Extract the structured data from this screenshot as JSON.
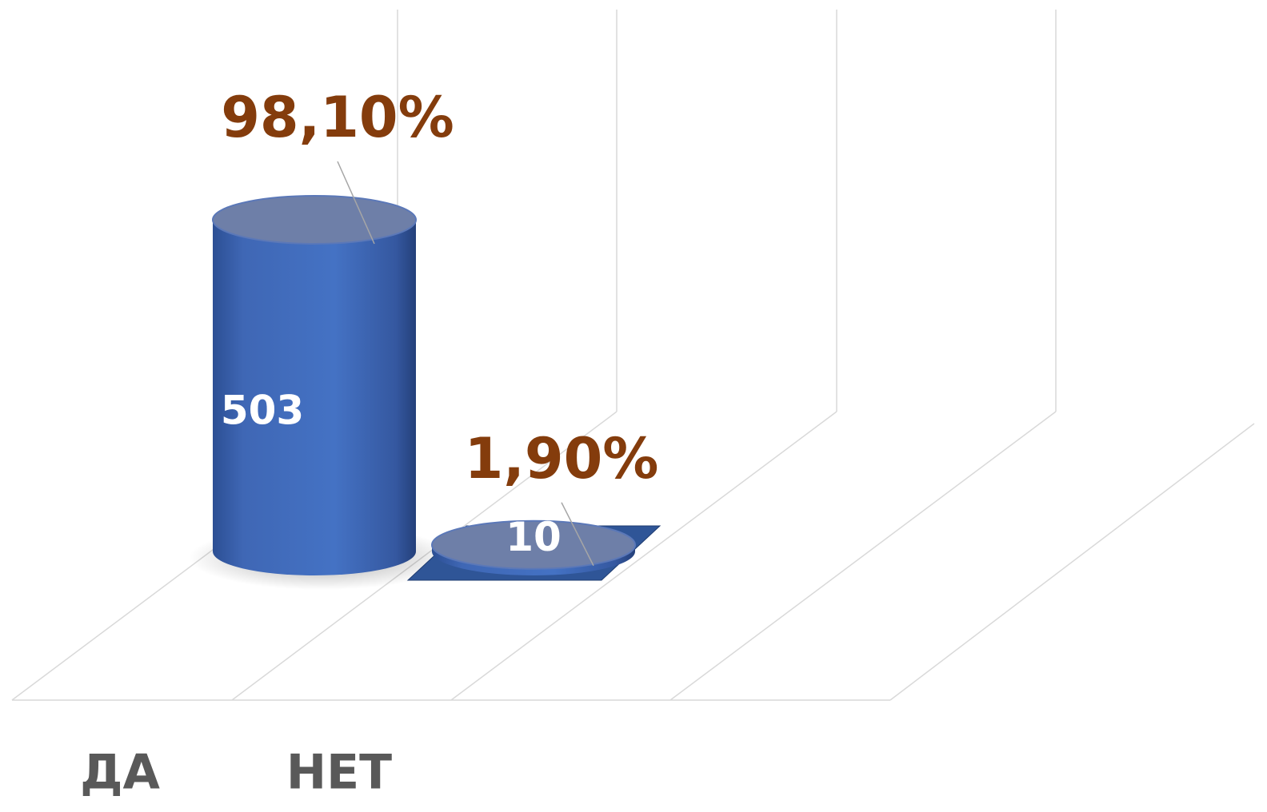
{
  "chart_data": {
    "type": "bar3d",
    "categories": [
      "ДА",
      "НЕТ"
    ],
    "values": [
      503,
      10
    ],
    "percentages": [
      98.1,
      1.9
    ],
    "percentage_labels": [
      "98,10%",
      "1,90%"
    ],
    "color": "#4472c4",
    "label_color": "#843c0c"
  }
}
